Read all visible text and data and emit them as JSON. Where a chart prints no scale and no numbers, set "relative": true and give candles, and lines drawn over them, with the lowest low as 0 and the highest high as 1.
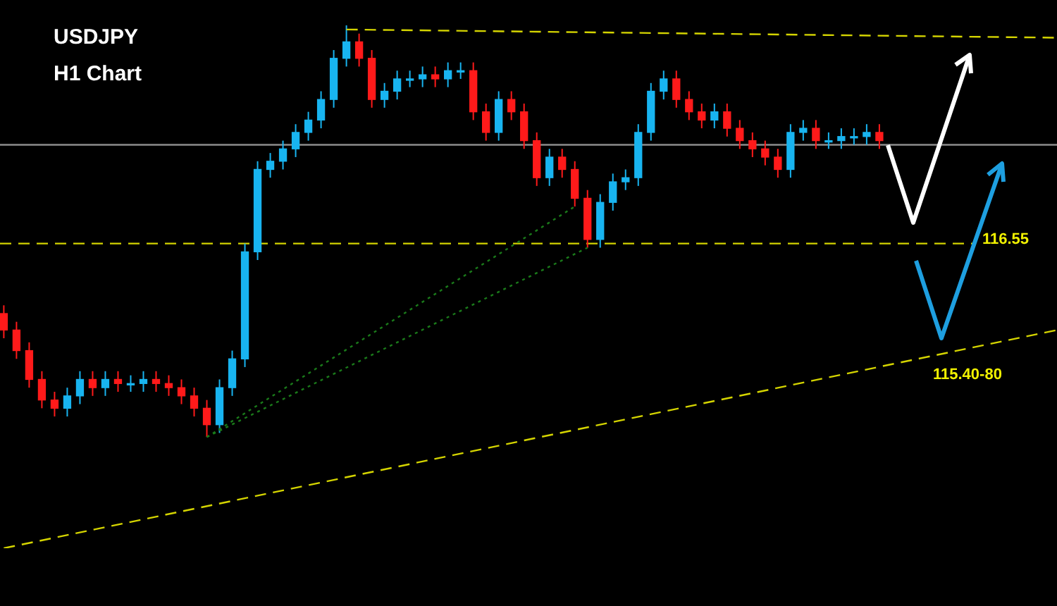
{
  "chart_data": {
    "type": "candlestick",
    "title": "USDJPY",
    "subtitle": "H1 Chart",
    "relative": true,
    "categories": [
      null,
      null,
      null,
      null,
      null,
      null,
      null,
      null,
      null,
      null,
      null,
      null,
      null,
      null,
      null,
      null,
      null,
      null,
      null,
      null,
      null,
      null,
      null,
      null,
      null,
      null,
      null,
      null,
      null,
      null,
      null,
      null,
      null,
      null,
      null,
      null,
      null,
      null,
      null,
      null,
      null,
      null,
      null,
      null,
      null,
      null,
      null,
      null,
      null,
      null,
      null,
      null,
      null,
      null,
      null,
      null,
      null,
      null,
      null,
      null,
      null,
      null,
      null,
      null,
      null,
      null,
      null,
      null,
      null,
      null,
      null,
      null,
      null,
      null,
      null,
      null,
      null,
      null,
      null,
      null,
      null,
      null,
      null,
      null
    ],
    "ohlc": [
      [
        0.3,
        0.32,
        0.24,
        0.26
      ],
      [
        0.26,
        0.28,
        0.19,
        0.21
      ],
      [
        0.21,
        0.23,
        0.12,
        0.14
      ],
      [
        0.14,
        0.16,
        0.07,
        0.09
      ],
      [
        0.09,
        0.11,
        0.05,
        0.07
      ],
      [
        0.07,
        0.12,
        0.05,
        0.1
      ],
      [
        0.1,
        0.16,
        0.08,
        0.14
      ],
      [
        0.14,
        0.16,
        0.1,
        0.12
      ],
      [
        0.12,
        0.16,
        0.1,
        0.14
      ],
      [
        0.14,
        0.16,
        0.11,
        0.13
      ],
      [
        0.13,
        0.15,
        0.11,
        0.13
      ],
      [
        0.13,
        0.16,
        0.11,
        0.14
      ],
      [
        0.14,
        0.16,
        0.11,
        0.13
      ],
      [
        0.13,
        0.15,
        0.1,
        0.12
      ],
      [
        0.12,
        0.14,
        0.08,
        0.1
      ],
      [
        0.1,
        0.12,
        0.05,
        0.07
      ],
      [
        0.07,
        0.09,
        0.0,
        0.03
      ],
      [
        0.03,
        0.14,
        0.01,
        0.12
      ],
      [
        0.12,
        0.21,
        0.1,
        0.19
      ],
      [
        0.19,
        0.47,
        0.17,
        0.45
      ],
      [
        0.45,
        0.67,
        0.43,
        0.65
      ],
      [
        0.65,
        0.69,
        0.63,
        0.67
      ],
      [
        0.67,
        0.72,
        0.65,
        0.7
      ],
      [
        0.7,
        0.76,
        0.68,
        0.74
      ],
      [
        0.74,
        0.79,
        0.72,
        0.77
      ],
      [
        0.77,
        0.84,
        0.75,
        0.82
      ],
      [
        0.82,
        0.94,
        0.8,
        0.92
      ],
      [
        0.92,
        1.0,
        0.9,
        0.96
      ],
      [
        0.96,
        0.98,
        0.9,
        0.92
      ],
      [
        0.92,
        0.94,
        0.8,
        0.82
      ],
      [
        0.82,
        0.86,
        0.8,
        0.84
      ],
      [
        0.84,
        0.89,
        0.82,
        0.87
      ],
      [
        0.87,
        0.89,
        0.85,
        0.87
      ],
      [
        0.87,
        0.9,
        0.85,
        0.88
      ],
      [
        0.88,
        0.9,
        0.85,
        0.87
      ],
      [
        0.87,
        0.91,
        0.85,
        0.89
      ],
      [
        0.89,
        0.91,
        0.87,
        0.89
      ],
      [
        0.89,
        0.91,
        0.77,
        0.79
      ],
      [
        0.79,
        0.81,
        0.72,
        0.74
      ],
      [
        0.74,
        0.84,
        0.72,
        0.82
      ],
      [
        0.82,
        0.84,
        0.77,
        0.79
      ],
      [
        0.79,
        0.81,
        0.7,
        0.72
      ],
      [
        0.72,
        0.74,
        0.61,
        0.63
      ],
      [
        0.63,
        0.7,
        0.61,
        0.68
      ],
      [
        0.68,
        0.7,
        0.63,
        0.65
      ],
      [
        0.65,
        0.67,
        0.56,
        0.58
      ],
      [
        0.58,
        0.6,
        0.46,
        0.48
      ],
      [
        0.48,
        0.59,
        0.46,
        0.57
      ],
      [
        0.57,
        0.64,
        0.55,
        0.62
      ],
      [
        0.62,
        0.65,
        0.6,
        0.63
      ],
      [
        0.63,
        0.76,
        0.61,
        0.74
      ],
      [
        0.74,
        0.86,
        0.72,
        0.84
      ],
      [
        0.84,
        0.89,
        0.82,
        0.87
      ],
      [
        0.87,
        0.89,
        0.8,
        0.82
      ],
      [
        0.82,
        0.84,
        0.77,
        0.79
      ],
      [
        0.79,
        0.81,
        0.75,
        0.77
      ],
      [
        0.77,
        0.81,
        0.75,
        0.79
      ],
      [
        0.79,
        0.81,
        0.73,
        0.75
      ],
      [
        0.75,
        0.77,
        0.7,
        0.72
      ],
      [
        0.72,
        0.74,
        0.68,
        0.7
      ],
      [
        0.7,
        0.72,
        0.66,
        0.68
      ],
      [
        0.68,
        0.7,
        0.63,
        0.65
      ],
      [
        0.65,
        0.76,
        0.63,
        0.74
      ],
      [
        0.74,
        0.77,
        0.72,
        0.75
      ],
      [
        0.75,
        0.77,
        0.7,
        0.72
      ],
      [
        0.72,
        0.74,
        0.7,
        0.72
      ],
      [
        0.72,
        0.75,
        0.7,
        0.73
      ],
      [
        0.73,
        0.75,
        0.71,
        0.73
      ],
      [
        0.73,
        0.76,
        0.71,
        0.74
      ],
      [
        0.74,
        0.76,
        0.7,
        0.72
      ],
      null,
      null,
      null,
      null,
      null,
      null,
      null,
      null,
      null,
      null,
      null,
      null,
      null,
      null
    ],
    "series": [
      {
        "type": "line",
        "color": "#d4d400",
        "line_style": "dashed",
        "values": [
          -0.27,
          null,
          null,
          null,
          null,
          null,
          null,
          null,
          null,
          null,
          null,
          null,
          null,
          null,
          null,
          null,
          null,
          null,
          null,
          null,
          null,
          null,
          null,
          null,
          null,
          null,
          null,
          null,
          null,
          null,
          null,
          null,
          null,
          null,
          null,
          null,
          null,
          null,
          null,
          null,
          null,
          null,
          null,
          null,
          null,
          null,
          null,
          null,
          null,
          null,
          null,
          null,
          null,
          null,
          null,
          null,
          null,
          null,
          null,
          null,
          null,
          null,
          null,
          null,
          null,
          null,
          null,
          null,
          null,
          null,
          null,
          null,
          null,
          null,
          null,
          null,
          null,
          null,
          null,
          null,
          null,
          null,
          null,
          0.26
        ]
      },
      {
        "type": "line",
        "color": "#d4d400",
        "line_style": "dashed",
        "values": [
          null,
          null,
          null,
          null,
          null,
          null,
          null,
          null,
          null,
          null,
          null,
          null,
          null,
          null,
          null,
          null,
          null,
          null,
          null,
          null,
          null,
          null,
          null,
          null,
          null,
          null,
          null,
          0.99,
          null,
          null,
          null,
          null,
          null,
          null,
          null,
          null,
          null,
          null,
          null,
          null,
          null,
          null,
          null,
          null,
          null,
          null,
          null,
          null,
          null,
          null,
          null,
          null,
          null,
          null,
          null,
          null,
          null,
          null,
          null,
          null,
          null,
          null,
          null,
          null,
          null,
          null,
          null,
          null,
          null,
          null,
          null,
          null,
          null,
          null,
          null,
          null,
          null,
          null,
          null,
          null,
          null,
          null,
          null,
          0.97
        ]
      },
      {
        "type": "line",
        "color": "#1a7a1a",
        "line_style": "dotted",
        "values": [
          null,
          null,
          null,
          null,
          null,
          null,
          null,
          null,
          null,
          null,
          null,
          null,
          null,
          null,
          null,
          null,
          0.0,
          null,
          null,
          null,
          null,
          null,
          null,
          null,
          null,
          null,
          null,
          null,
          null,
          null,
          null,
          null,
          null,
          null,
          null,
          null,
          null,
          null,
          null,
          null,
          null,
          null,
          null,
          null,
          null,
          0.56,
          null,
          null,
          null,
          null,
          null,
          null,
          null,
          null,
          null,
          null,
          null,
          null,
          null,
          null,
          null,
          null,
          null,
          null,
          null,
          null,
          null,
          null,
          null,
          null,
          null,
          null,
          null,
          null,
          null,
          null,
          null,
          null,
          null,
          null,
          null,
          null,
          null,
          null
        ]
      },
      {
        "type": "line",
        "color": "#1a7a1a",
        "line_style": "dotted",
        "values": [
          null,
          null,
          null,
          null,
          null,
          null,
          null,
          null,
          null,
          null,
          null,
          null,
          null,
          null,
          null,
          null,
          0.0,
          null,
          null,
          null,
          null,
          null,
          null,
          null,
          null,
          null,
          null,
          null,
          null,
          null,
          null,
          null,
          null,
          null,
          null,
          null,
          null,
          null,
          null,
          null,
          null,
          null,
          null,
          null,
          null,
          null,
          0.46,
          null,
          null,
          null,
          null,
          null,
          null,
          null,
          null,
          null,
          null,
          null,
          null,
          null,
          null,
          null,
          null,
          null,
          null,
          null,
          null,
          null,
          null,
          null,
          null,
          null,
          null,
          null,
          null,
          null,
          null,
          null,
          null,
          null,
          null,
          null,
          null,
          null
        ]
      }
    ],
    "ref_lines": [
      {
        "axis": "y",
        "value": 0.47,
        "color": "#d4d400",
        "line_style": "dashed"
      },
      {
        "axis": "y",
        "value": 0.71,
        "color": "#8c8c8c",
        "line_style": "solid"
      }
    ],
    "annotations": [
      "116.55",
      "115.40-80"
    ]
  }
}
